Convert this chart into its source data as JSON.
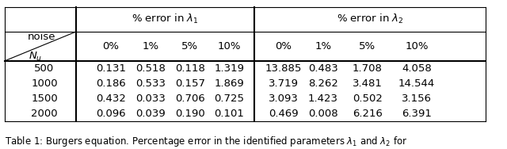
{
  "title_caption": "Table 1: Burgers equation. Percentage error in the identified parameters \\lambda_1 and \\lambda_2 for",
  "header_row1_left": "",
  "header_row1_lambda1": "% error in $\\lambda_1$",
  "header_row1_lambda2": "% error in $\\lambda_2$",
  "noise_labels": [
    "0%",
    "1%",
    "5%",
    "10%"
  ],
  "nu_label": "$N_u$",
  "noise_label": "noise",
  "rows": [
    {
      "nu": "500",
      "lambda1": [
        "0.131",
        "0.518",
        "0.118",
        "1.319"
      ],
      "lambda2": [
        "13.885",
        "0.483",
        "1.708",
        "4.058"
      ]
    },
    {
      "nu": "1000",
      "lambda1": [
        "0.186",
        "0.533",
        "0.157",
        "1.869"
      ],
      "lambda2": [
        "3.719",
        "8.262",
        "3.481",
        "14.544"
      ]
    },
    {
      "nu": "1500",
      "lambda1": [
        "0.432",
        "0.033",
        "0.706",
        "0.725"
      ],
      "lambda2": [
        "3.093",
        "1.423",
        "0.502",
        "3.156"
      ]
    },
    {
      "nu": "2000",
      "lambda1": [
        "0.096",
        "0.039",
        "0.190",
        "0.101"
      ],
      "lambda2": [
        "0.469",
        "0.008",
        "6.216",
        "6.391"
      ]
    }
  ],
  "caption": "Table 1: Burgers equation. Percentage error in the identified parameters $\\lambda_1$ and $\\lambda_2$ for",
  "bg_color": "#ffffff",
  "font_size": 9.5,
  "caption_font_size": 8.5
}
